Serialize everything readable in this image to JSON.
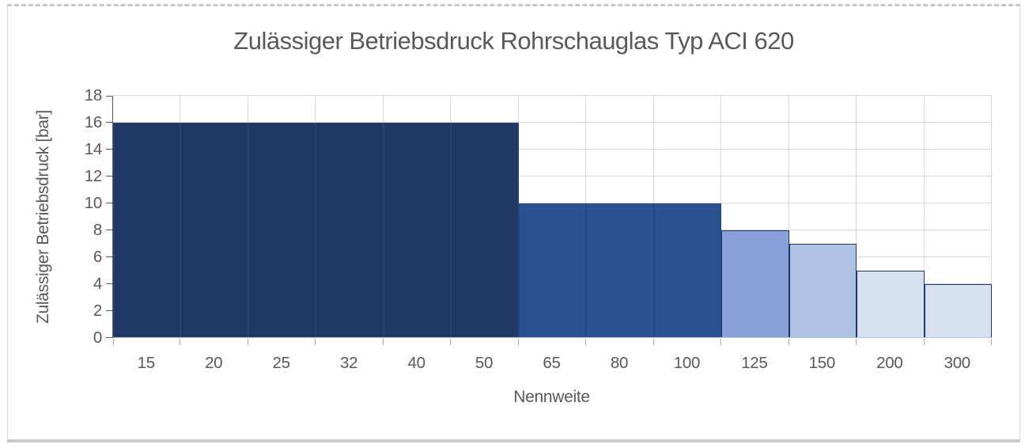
{
  "chart_data": {
    "type": "bar",
    "title": "Zulässiger Betriebsdruck Rohrschauglas Typ ACI 620",
    "xlabel": "Nennweite",
    "ylabel": "Zulässiger Betriebsdruck [bar]",
    "categories": [
      "15",
      "20",
      "25",
      "32",
      "40",
      "50",
      "65",
      "80",
      "100",
      "125",
      "150",
      "200",
      "300"
    ],
    "values": [
      16,
      16,
      16,
      16,
      16,
      16,
      10,
      10,
      10,
      8,
      7,
      5,
      4
    ],
    "ylim": [
      0,
      18
    ],
    "yticks": [
      0,
      2,
      4,
      6,
      8,
      10,
      12,
      14,
      16,
      18
    ],
    "legend": "none",
    "grid": {
      "horizontal": true,
      "vertical": true,
      "color": "#d9d9d9"
    },
    "axis_text_color": "#595959",
    "bar_fills": [
      "#203864",
      "#203864",
      "#203864",
      "#203864",
      "#203864",
      "#203864",
      "#2c5193",
      "#2c5193",
      "#2c5193",
      "#8aa0d8",
      "#afc1e5",
      "#d6e0f1",
      "#d6e0f1"
    ],
    "bar_borders": [
      "#2c4272",
      "#2c4272",
      "#2c4272",
      "#2c4272",
      "#2c4272",
      "#2c4272",
      "#24467c",
      "#24467c",
      "#24467c",
      "#1f3864",
      "#1f3864",
      "#1f3864",
      "#1f3864"
    ]
  }
}
